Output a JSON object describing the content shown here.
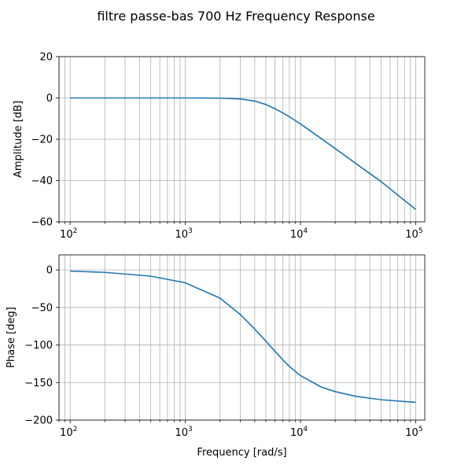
{
  "figure": {
    "title": "filtre passe-bas 700 Hz Frequency Response"
  },
  "chart_data": [
    {
      "type": "line",
      "panel": "amplitude",
      "ylabel": "Amplitude [dB]",
      "xlabel": "",
      "x_scale": "log",
      "xlim": [
        80,
        120000
      ],
      "ylim": [
        -60,
        20
      ],
      "grid": true,
      "x_ticks": [
        {
          "base": "10",
          "exp": "2",
          "value": 100
        },
        {
          "base": "10",
          "exp": "3",
          "value": 1000
        },
        {
          "base": "10",
          "exp": "4",
          "value": 10000
        },
        {
          "base": "10",
          "exp": "5",
          "value": 100000
        }
      ],
      "y_ticks": [
        {
          "label": "20",
          "value": 20
        },
        {
          "label": "0",
          "value": 0
        },
        {
          "label": "−20",
          "value": -20
        },
        {
          "label": "−40",
          "value": -40
        },
        {
          "label": "−60",
          "value": -60
        }
      ],
      "series": [
        {
          "color": "#1f77b4",
          "x": [
            100,
            200,
            500,
            1000,
            2000,
            3000,
            4000,
            5000,
            6000,
            7000,
            8000,
            10000,
            15000,
            20000,
            30000,
            50000,
            100000
          ],
          "y": [
            0,
            0,
            0,
            0,
            -0.1,
            -0.5,
            -1.5,
            -3.2,
            -5.2,
            -7.2,
            -9.1,
            -12.6,
            -19.5,
            -24.5,
            -31.6,
            -40.5,
            -54.0
          ]
        }
      ]
    },
    {
      "type": "line",
      "panel": "phase",
      "ylabel": "Phase [deg]",
      "xlabel": "Frequency [rad/s]",
      "x_scale": "log",
      "xlim": [
        80,
        120000
      ],
      "ylim": [
        -200,
        20
      ],
      "grid": true,
      "x_ticks": [
        {
          "base": "10",
          "exp": "2",
          "value": 100
        },
        {
          "base": "10",
          "exp": "3",
          "value": 1000
        },
        {
          "base": "10",
          "exp": "4",
          "value": 10000
        },
        {
          "base": "10",
          "exp": "5",
          "value": 100000
        }
      ],
      "y_ticks": [
        {
          "label": "0",
          "value": 0
        },
        {
          "label": "−50",
          "value": -50
        },
        {
          "label": "−100",
          "value": -100
        },
        {
          "label": "−150",
          "value": -150
        },
        {
          "label": "−200",
          "value": -200
        }
      ],
      "series": [
        {
          "color": "#1f77b4",
          "x": [
            100,
            200,
            500,
            1000,
            2000,
            3000,
            4000,
            5000,
            6000,
            7000,
            8000,
            10000,
            15000,
            20000,
            30000,
            50000,
            100000
          ],
          "y": [
            -1.6,
            -3.3,
            -8.3,
            -17.2,
            -37.6,
            -59.3,
            -78.7,
            -94.8,
            -108.4,
            -119.5,
            -128.5,
            -140.8,
            -155.7,
            -162.1,
            -168.2,
            -172.9,
            -176.4
          ]
        }
      ]
    }
  ]
}
